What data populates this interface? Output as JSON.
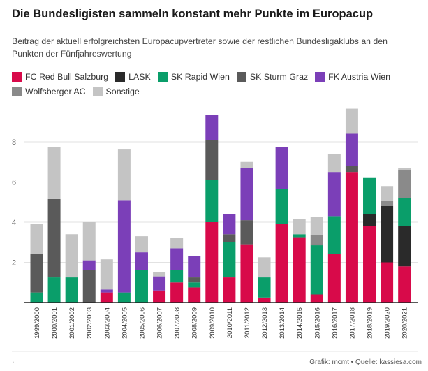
{
  "header": {
    "title": "Die Bundesligisten sammeln konstant mehr Punkte im Europacup",
    "subtitle": "Beitrag der aktuell erfolgreichsten Europacupvertreter sowie der restlichen Bundesligaklubs an den Punkten der Fünfjahreswertung"
  },
  "footer": {
    "prefix": "Grafik: mcmt • Quelle: ",
    "source_link": "kassiesa.com",
    "dot": "."
  },
  "chart_data": {
    "type": "bar",
    "stacked": true,
    "categories": [
      "1999/2000",
      "2000/2001",
      "2001/2002",
      "2002/2003",
      "2003/2004",
      "2004/2005",
      "2005/2006",
      "2006/2007",
      "2007/2008",
      "2008/2009",
      "2009/2010",
      "2010/2011",
      "2011/2012",
      "2012/2013",
      "2013/2014",
      "2014/2015",
      "2015/2016",
      "2016/2017",
      "2017/2018",
      "2018/2019",
      "2019/2020",
      "2020/2021"
    ],
    "ylim": [
      0,
      10
    ],
    "yticks": [
      2,
      4,
      6,
      8
    ],
    "grid": true,
    "legend_placement": "top",
    "series": [
      {
        "name": "FC Red Bull Salzburg",
        "color": "#d80a4a",
        "values": [
          0,
          0,
          0,
          0,
          0.5,
          0,
          0,
          0.6,
          1.0,
          0.75,
          4.0,
          1.25,
          2.9,
          0.25,
          3.9,
          3.25,
          0.4,
          2.4,
          6.5,
          3.8,
          2.0,
          1.8
        ]
      },
      {
        "name": "LASK",
        "color": "#2a2a2a",
        "values": [
          0,
          0,
          0,
          0,
          0,
          0,
          0,
          0,
          0,
          0,
          0,
          0,
          0,
          0,
          0,
          0,
          0,
          0,
          0,
          0.6,
          2.8,
          2.0
        ]
      },
      {
        "name": "SK Rapid Wien",
        "color": "#0a9e6a",
        "values": [
          0.5,
          1.25,
          1.25,
          0,
          0,
          0.5,
          1.6,
          0,
          0.6,
          0.25,
          2.1,
          1.75,
          0,
          1.0,
          1.75,
          0.15,
          2.45,
          1.9,
          0,
          1.8,
          0,
          1.4
        ]
      },
      {
        "name": "SK Sturm Graz",
        "color": "#5a5a5a",
        "values": [
          1.9,
          3.9,
          0,
          1.6,
          0,
          0,
          0,
          0,
          0,
          0.25,
          2.0,
          0.4,
          1.2,
          0,
          0,
          0,
          0.05,
          0,
          0.3,
          0,
          0,
          0
        ]
      },
      {
        "name": "FK Austria Wien",
        "color": "#7b3fb8",
        "values": [
          0,
          0,
          0,
          0.5,
          0.15,
          4.6,
          0.9,
          0.7,
          1.1,
          1.05,
          1.25,
          1.0,
          2.6,
          0,
          2.1,
          0,
          0,
          2.2,
          1.6,
          0,
          0,
          0
        ]
      },
      {
        "name": "Wolfsberger AC",
        "color": "#8a8a8a",
        "values": [
          0,
          0,
          0,
          0,
          0,
          0,
          0,
          0,
          0,
          0,
          0,
          0,
          0,
          0,
          0,
          0,
          0.45,
          0,
          0,
          0,
          0.25,
          1.4
        ]
      },
      {
        "name": "Sonstige",
        "color": "#c4c4c4",
        "values": [
          1.5,
          2.6,
          2.15,
          1.9,
          1.5,
          2.55,
          0.8,
          0.2,
          0.5,
          0,
          0,
          0,
          0.3,
          1.0,
          0,
          0.75,
          0.9,
          0.9,
          1.25,
          0,
          0.75,
          0.1
        ]
      }
    ]
  }
}
